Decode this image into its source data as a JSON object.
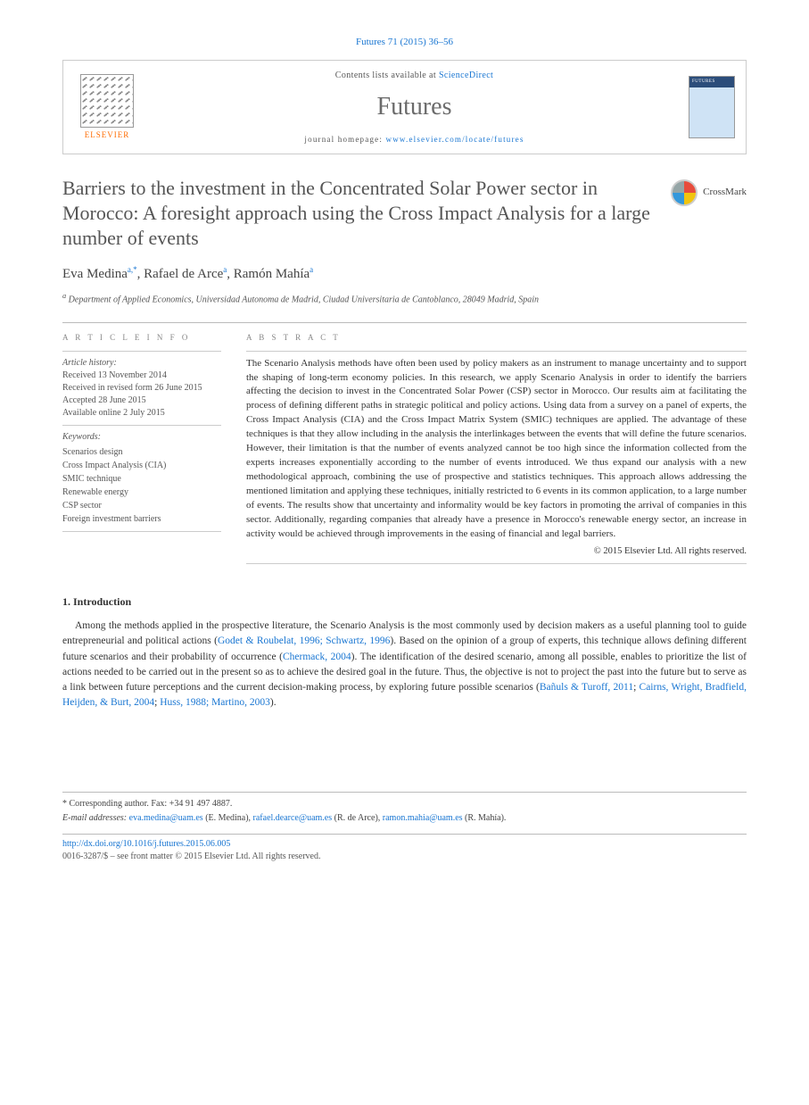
{
  "header": {
    "citation": "Futures 71 (2015) 36–56",
    "contents_prefix": "Contents lists available at ",
    "contents_link": "ScienceDirect",
    "journal": "Futures",
    "homepage_prefix": "journal homepage: ",
    "homepage_url": "www.elsevier.com/locate/futures",
    "publisher_name": "ELSEVIER",
    "crossmark_label": "CrossMark"
  },
  "article": {
    "title": "Barriers to the investment in the Concentrated Solar Power sector in Morocco: A foresight approach using the Cross Impact Analysis for a large number of events",
    "authors_html": [
      {
        "name": "Eva Medina",
        "aff": "a,",
        "corr": "*"
      },
      {
        "name": "Rafael de Arce",
        "aff": "a",
        "corr": ""
      },
      {
        "name": "Ramón Mahía",
        "aff": "a",
        "corr": ""
      }
    ],
    "affiliation_sup": "a",
    "affiliation": "Department of Applied Economics, Universidad Autonoma de Madrid, Ciudad Universitaria de Cantoblanco, 28049 Madrid, Spain"
  },
  "info": {
    "heading": "A R T I C L E  I N F O",
    "history_label": "Article history:",
    "history": [
      "Received 13 November 2014",
      "Received in revised form 26 June 2015",
      "Accepted 28 June 2015",
      "Available online 2 July 2015"
    ],
    "keywords_label": "Keywords:",
    "keywords": [
      "Scenarios design",
      "Cross Impact Analysis (CIA)",
      "SMIC technique",
      "Renewable energy",
      "CSP sector",
      "Foreign investment barriers"
    ]
  },
  "abstract": {
    "heading": "A B S T R A C T",
    "body": "The Scenario Analysis methods have often been used by policy makers as an instrument to manage uncertainty and to support the shaping of long-term economy policies. In this research, we apply Scenario Analysis in order to identify the barriers affecting the decision to invest in the Concentrated Solar Power (CSP) sector in Morocco. Our results aim at facilitating the process of defining different paths in strategic political and policy actions. Using data from a survey on a panel of experts, the Cross Impact Analysis (CIA) and the Cross Impact Matrix System (SMIC) techniques are applied. The advantage of these techniques is that they allow including in the analysis the interlinkages between the events that will define the future scenarios. However, their limitation is that the number of events analyzed cannot be too high since the information collected from the experts increases exponentially according to the number of events introduced. We thus expand our analysis with a new methodological approach, combining the use of prospective and statistics techniques. This approach allows addressing the mentioned limitation and applying these techniques, initially restricted to 6 events in its common application, to a large number of events. The results show that uncertainty and informality would be key factors in promoting the arrival of companies in this sector. Additionally, regarding companies that already have a presence in Morocco's renewable energy sector, an increase in activity would be achieved through improvements in the easing of financial and legal barriers.",
    "copyright": "© 2015 Elsevier Ltd. All rights reserved."
  },
  "intro": {
    "heading": "1. Introduction",
    "p1_pre": "Among the methods applied in the prospective literature, the Scenario Analysis is the most commonly used by decision makers as a useful planning tool to guide entrepreneurial and political actions (",
    "p1_c1": "Godet & Roubelat, 1996; Schwartz, 1996",
    "p1_mid1": "). Based on the opinion of a group of experts, this technique allows defining different future scenarios and their probability of occurrence (",
    "p1_c2": "Chermack, 2004",
    "p1_mid2": "). The identification of the desired scenario, among all possible, enables to prioritize the list of actions needed to be carried out in the present so as to achieve the desired goal in the future. Thus, the objective is not to project the past into the future but to serve as a link between future perceptions and the current decision-making process, by exploring future possible scenarios (",
    "p1_c3": "Bañuls & Turoff, 2011",
    "p1_sep1": "; ",
    "p1_c4": "Cairns, Wright, Bradfield, Heijden, & Burt, 2004",
    "p1_sep2": "; ",
    "p1_c5": "Huss, 1988; Martino, 2003",
    "p1_end": ")."
  },
  "footnotes": {
    "corr_label": "* Corresponding author. Fax: +34 91 497 4887.",
    "email_label": "E-mail addresses:",
    "emails": [
      {
        "addr": "eva.medina@uam.es",
        "who": " (E. Medina), "
      },
      {
        "addr": "rafael.dearce@uam.es",
        "who": " (R. de Arce), "
      },
      {
        "addr": "ramon.mahia@uam.es",
        "who": " (R. Mahía)."
      }
    ]
  },
  "bottom": {
    "doi": "http://dx.doi.org/10.1016/j.futures.2015.06.005",
    "issn_line": "0016-3287/$ – see front matter © 2015 Elsevier Ltd. All rights reserved."
  }
}
